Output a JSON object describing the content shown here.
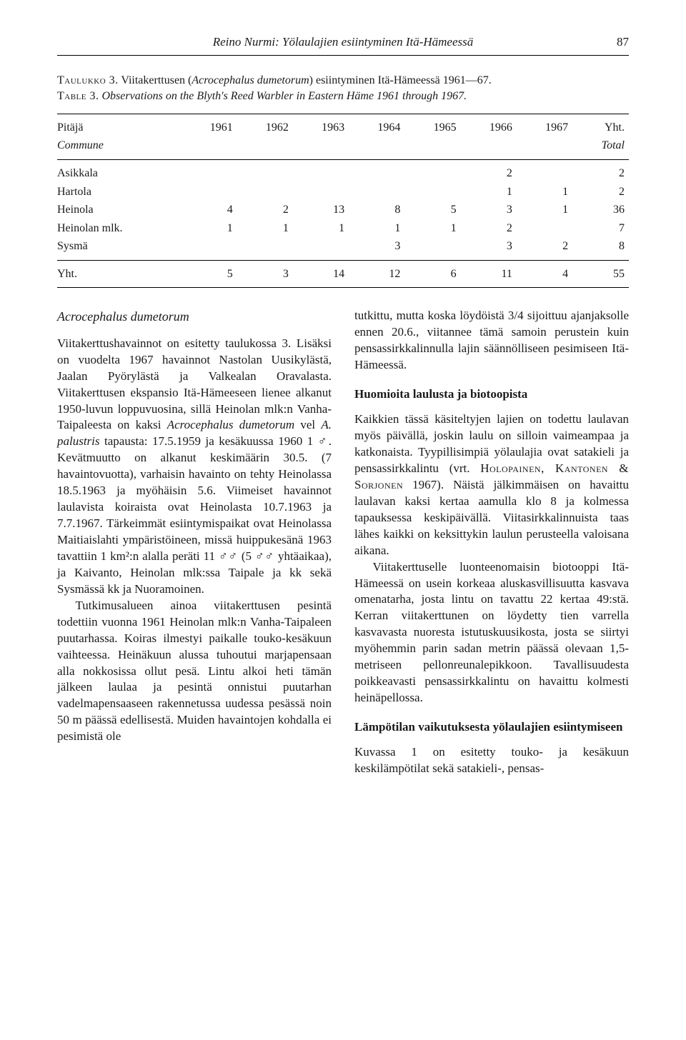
{
  "running_head": "Reino Nurmi: Yölaulajien esiintyminen Itä-Hämeessä",
  "page_number": "87",
  "caption": {
    "line1_sc": "Taulukko 3.",
    "line1_rest": " Viitakerttusen (",
    "line1_it": "Acrocephalus dumetorum",
    "line1_end": ") esiintyminen Itä-Hämeessä 1961—67.",
    "line2_sc": "Table 3.",
    "line2_it": " Observations on the Blyth's Reed Warbler in Eastern Häme 1961 through 1967."
  },
  "table": {
    "type": "table",
    "background_color": "#ffffff",
    "rule_color": "#000000",
    "fontsize": 16,
    "col_head_top": [
      "Pitäjä",
      "1961",
      "1962",
      "1963",
      "1964",
      "1965",
      "1966",
      "1967",
      "Yht."
    ],
    "col_head_sub": [
      "Commune",
      "",
      "",
      "",
      "",
      "",
      "",
      "",
      "Total"
    ],
    "rows": [
      [
        "Asikkala",
        "",
        "",
        "",
        "",
        "",
        "2",
        "",
        "2"
      ],
      [
        "Hartola",
        "",
        "",
        "",
        "",
        "",
        "1",
        "1",
        "2"
      ],
      [
        "Heinola",
        "4",
        "2",
        "13",
        "8",
        "5",
        "3",
        "1",
        "36"
      ],
      [
        "Heinolan mlk.",
        "1",
        "1",
        "1",
        "1",
        "1",
        "2",
        "",
        "7"
      ],
      [
        "Sysmä",
        "",
        "",
        "",
        "3",
        "",
        "3",
        "2",
        "8"
      ]
    ],
    "footer": [
      "Yht.",
      "5",
      "3",
      "14",
      "12",
      "6",
      "11",
      "4",
      "55"
    ]
  },
  "left": {
    "title": "Acrocephalus dumetorum",
    "p1a": "Viitakerttushavainnot on esitetty taulukossa 3. Lisäksi on vuodelta 1967 havainnot Nastolan Uusikylästä, Jaalan Pyörylästä ja Valkealan Oravalasta. Viitakerttusen ekspansio Itä-Hämeeseen lienee alkanut 1950-luvun loppuvuosina, sillä Heinolan mlk:n Vanha-Taipaleesta on kaksi ",
    "p1b_it": "Acrocephalus dumetorum",
    "p1c": " vel ",
    "p1d_it": "A. palustris",
    "p1e": " tapausta: 17.5.1959 ja kesäkuussa 1960 1 ♂. Kevätmuutto on alkanut keskimäärin 30.5. (7 havaintovuotta), varhaisin havainto on tehty Heinolassa 18.5.1963 ja myöhäisin 5.6. Viimeiset havainnot laulavista koiraista ovat Heinolasta 10.7.1963 ja 7.7.1967. Tärkeimmät esiintymispaikat ovat Heinolassa Maitiaislahti ympäristöineen, missä huippukesänä 1963 tavattiin 1 km²:n alalla peräti 11 ♂♂ (5 ♂♂ yhtäaikaa), ja Kaivanto, Heinolan mlk:ssa Taipale ja kk sekä Sysmässä kk ja Nuoramoinen.",
    "p2": "Tutkimusalueen ainoa viitakerttusen pesintä todettiin vuonna 1961 Heinolan mlk:n Vanha-Taipaleen puutarhassa. Koiras ilmestyi paikalle touko-kesäkuun vaihteessa. Heinäkuun alussa tuhoutui marjapensaan alla nokkosissa ollut pesä. Lintu alkoi heti tämän jälkeen laulaa ja pesintä onnistui puutarhan vadelmapensaaseen rakennetussa uudessa pesässä noin 50 m päässä edellisestä. Muiden havaintojen kohdalla ei pesimistä ole"
  },
  "right": {
    "p1": "tutkittu, mutta koska löydöistä 3/4 sijoittuu ajanjaksolle ennen 20.6., viitannee tämä samoin perustein kuin pensassirkkalinnulla lajin säännölliseen pesimiseen Itä-Hämeessä.",
    "h1": "Huomioita laulusta ja biotoopista",
    "p2a": "Kaikkien tässä käsiteltyjen lajien on todettu laulavan myös päivällä, joskin laulu on silloin vaimeampaa ja katkonaista. Tyypillisimpiä yölaulajia ovat satakieli ja pensassirkkalintu (vrt. ",
    "p2_sc": "Holopainen, Kantonen & Sorjonen",
    "p2b": " 1967). Näistä jälkimmäisen on havaittu laulavan kaksi kertaa aamulla klo 8 ja kolmessa tapauksessa keskipäivällä. Viitasirkkalinnuista taas lähes kaikki on keksittykin laulun perusteella valoisana aikana.",
    "p3": "Viitakerttuselle luonteenomaisin biotooppi Itä-Hämeessä on usein korkeaa aluskasvillisuutta kasvava omenatarha, josta lintu on tavattu 22 kertaa 49:stä. Kerran viitakerttunen on löydetty tien varrella kasvavasta nuoresta istutuskuusikosta, josta se siirtyi myöhemmin parin sadan metrin päässä olevaan 1,5-metriseen pellonreunalepikkoon. Tavallisuudesta poikkeavasti pensassirkkalintu on havaittu kolmesti heinäpellossa.",
    "h2": "Lämpötilan vaikutuksesta yölaulajien esiintymiseen",
    "p4": "Kuvassa 1 on esitetty touko- ja kesäkuun keskilämpötilat sekä satakieli-, pensas-"
  }
}
